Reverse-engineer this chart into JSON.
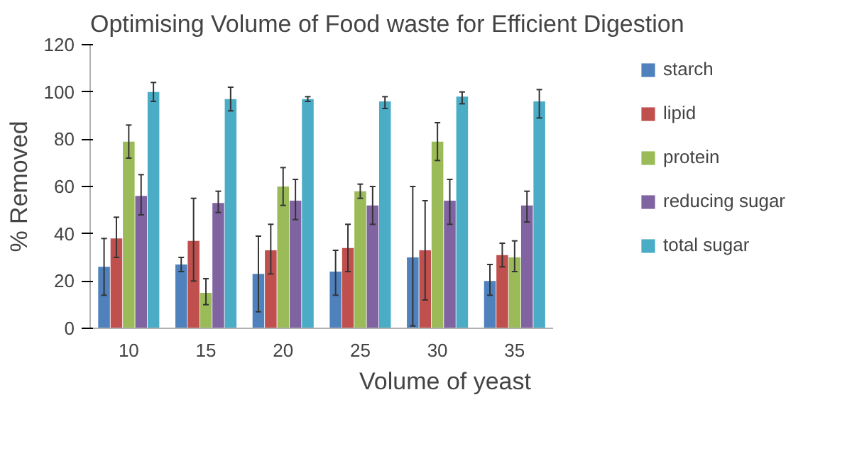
{
  "chart_data": {
    "type": "bar",
    "title": "Optimising Volume of Food waste for Efficient Digestion",
    "xlabel": "Volume of yeast",
    "ylabel": "% Removed",
    "categories": [
      "10",
      "15",
      "20",
      "25",
      "30",
      "35"
    ],
    "ylim": [
      0,
      120
    ],
    "yticks": [
      0,
      20,
      40,
      60,
      80,
      100,
      120
    ],
    "grid": false,
    "legend": "right",
    "series": [
      {
        "name": "starch",
        "color": "#4f81bd",
        "values": [
          26,
          27,
          23,
          24,
          30,
          20
        ],
        "errors": [
          [
            14,
            38
          ],
          [
            24,
            30
          ],
          [
            7,
            39
          ],
          [
            14,
            33
          ],
          [
            1,
            60
          ],
          [
            14,
            27
          ]
        ]
      },
      {
        "name": "lipid",
        "color": "#c0504d",
        "values": [
          38,
          37,
          33,
          34,
          33,
          31
        ],
        "errors": [
          [
            30,
            47
          ],
          [
            20,
            55
          ],
          [
            23,
            44
          ],
          [
            24,
            44
          ],
          [
            12,
            54
          ],
          [
            26,
            36
          ]
        ]
      },
      {
        "name": "protein",
        "color": "#9bbb59",
        "values": [
          79,
          15,
          60,
          58,
          79,
          30
        ],
        "errors": [
          [
            72,
            86
          ],
          [
            10,
            21
          ],
          [
            52,
            68
          ],
          [
            55,
            61
          ],
          [
            71,
            87
          ],
          [
            24,
            37
          ]
        ]
      },
      {
        "name": "reducing sugar",
        "color": "#8064a2",
        "values": [
          56,
          53,
          54,
          52,
          54,
          52
        ],
        "errors": [
          [
            48,
            65
          ],
          [
            49,
            58
          ],
          [
            46,
            63
          ],
          [
            44,
            60
          ],
          [
            44,
            63
          ],
          [
            45,
            58
          ]
        ]
      },
      {
        "name": "total sugar",
        "color": "#4bacc6",
        "values": [
          100,
          97,
          97,
          96,
          98,
          96
        ],
        "errors": [
          [
            96,
            104
          ],
          [
            92,
            102
          ],
          [
            96,
            98
          ],
          [
            93,
            98
          ],
          [
            95,
            100
          ],
          [
            89,
            101
          ]
        ]
      }
    ]
  }
}
